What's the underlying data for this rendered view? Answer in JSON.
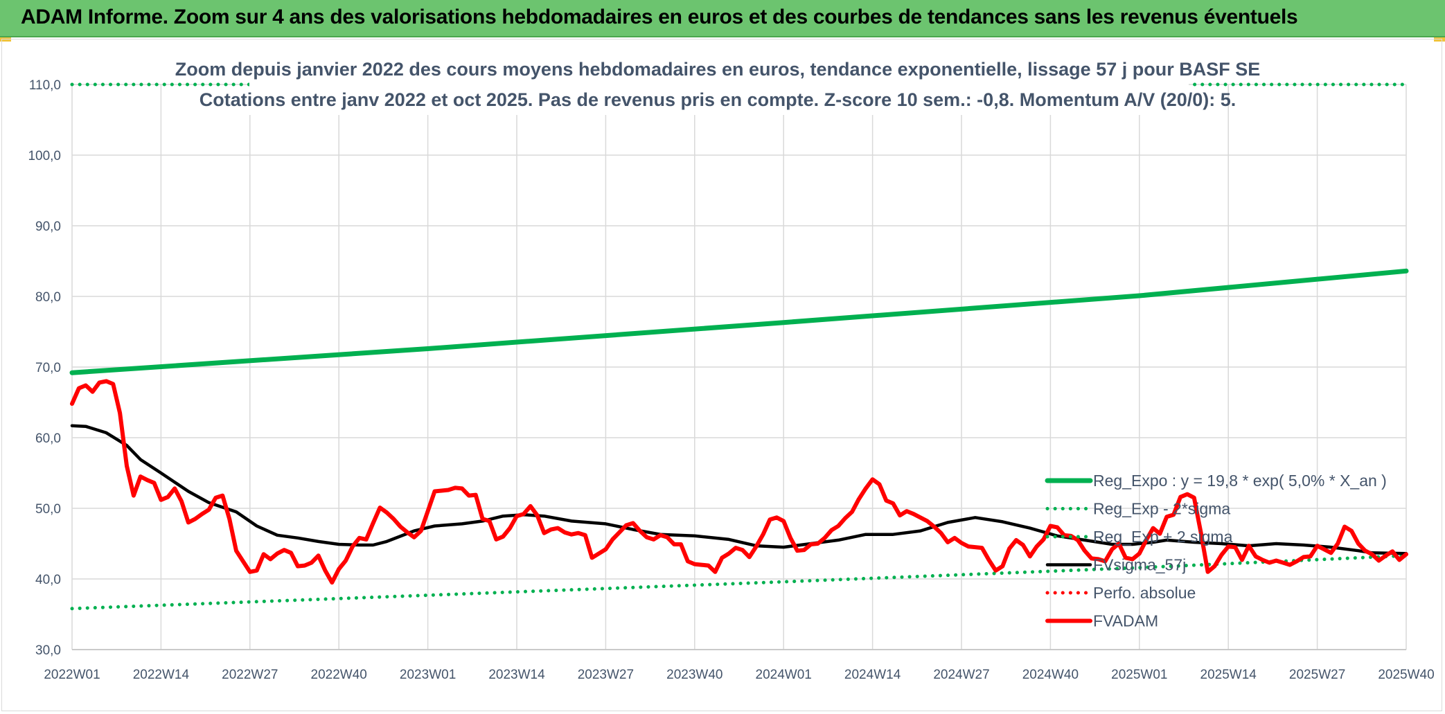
{
  "window": {
    "title": "ADAM Informe. Zoom sur 4 ans des valorisations hebdomadaires en euros et des courbes de tendances sans les revenus éventuels"
  },
  "colors": {
    "title_bar": "#6cc46f",
    "reg_expo": "#00b050",
    "sigma_lines": "#00b050",
    "fvsigma": "#000000",
    "perfo": "#ff0000",
    "fvadam": "#ff0000",
    "grid": "#d9d9d9",
    "text": "#44546a"
  },
  "chart_data": {
    "type": "line",
    "title": "Zoom depuis janvier 2022 des cours moyens hebdomadaires en euros, tendance exponentielle, lissage 57 j pour BASF SE",
    "subtitle": "Cotations entre janv 2022 et oct 2025. Pas de revenus pris en compte. Z-score 10 sem.: -0,8. Momentum A/V (20/0): 5.",
    "xlabel": "",
    "ylabel": "",
    "ylim": [
      30,
      110
    ],
    "yticks": [
      "30,0",
      "40,0",
      "50,0",
      "60,0",
      "70,0",
      "80,0",
      "90,0",
      "100,0",
      "110,0"
    ],
    "x_categories": [
      "2022W01",
      "2022W14",
      "2022W27",
      "2022W40",
      "2023W01",
      "2023W14",
      "2023W27",
      "2023W40",
      "2024W01",
      "2024W14",
      "2024W27",
      "2024W40",
      "2025W01",
      "2025W14",
      "2025W27",
      "2025W40"
    ],
    "x_range_weeks": [
      0,
      195
    ],
    "grid": true,
    "legend_position": "bottom-right",
    "legend": [
      "Reg_Expo : y = 19,8 * exp( 5,0% *  X_an )",
      "Reg_Exp - 2*sigma",
      "Reg_Exp + 2 sigma",
      "FVsigma_57j",
      "Perfo. absolue",
      "FVADAM"
    ],
    "series": [
      {
        "name": "Reg_Expo : y = 19,8 * exp( 5,0% *  X_an )",
        "style": "solid-thick",
        "color": "#00b050",
        "points": [
          [
            0,
            69.2
          ],
          [
            52,
            72.6
          ],
          [
            104,
            76.3
          ],
          [
            156,
            80.1
          ],
          [
            195,
            83.6
          ]
        ]
      },
      {
        "name": "Reg_Exp - 2*sigma",
        "style": "dotted",
        "color": "#00b050",
        "points": [
          [
            0,
            35.8
          ],
          [
            52,
            37.7
          ],
          [
            104,
            39.6
          ],
          [
            156,
            41.6
          ],
          [
            195,
            43.3
          ]
        ]
      },
      {
        "name": "Reg_Exp + 2 sigma",
        "style": "dotted",
        "color": "#00b050",
        "points": [
          [
            0,
            110.0
          ],
          [
            195,
            110.0
          ]
        ]
      },
      {
        "name": "FVsigma_57j",
        "style": "solid",
        "color": "#000000",
        "points": [
          [
            0,
            61.7
          ],
          [
            2,
            61.6
          ],
          [
            5,
            60.7
          ],
          [
            8,
            58.9
          ],
          [
            10,
            56.9
          ],
          [
            13,
            55.0
          ],
          [
            17,
            52.4
          ],
          [
            20,
            50.8
          ],
          [
            24,
            49.5
          ],
          [
            27,
            47.5
          ],
          [
            30,
            46.2
          ],
          [
            33,
            45.8
          ],
          [
            36,
            45.3
          ],
          [
            39,
            44.9
          ],
          [
            42,
            44.8
          ],
          [
            44,
            44.8
          ],
          [
            46,
            45.3
          ],
          [
            50,
            46.8
          ],
          [
            53,
            47.5
          ],
          [
            57,
            47.8
          ],
          [
            60,
            48.2
          ],
          [
            63,
            48.9
          ],
          [
            66,
            49.1
          ],
          [
            69,
            48.9
          ],
          [
            73,
            48.2
          ],
          [
            78,
            47.8
          ],
          [
            82,
            47.0
          ],
          [
            86,
            46.3
          ],
          [
            91,
            46.1
          ],
          [
            96,
            45.6
          ],
          [
            100,
            44.7
          ],
          [
            104,
            44.5
          ],
          [
            108,
            45.0
          ],
          [
            112,
            45.5
          ],
          [
            116,
            46.3
          ],
          [
            120,
            46.3
          ],
          [
            124,
            46.8
          ],
          [
            128,
            48.0
          ],
          [
            132,
            48.7
          ],
          [
            136,
            48.1
          ],
          [
            140,
            47.2
          ],
          [
            144,
            46.1
          ],
          [
            148,
            45.5
          ],
          [
            152,
            44.9
          ],
          [
            155,
            44.9
          ],
          [
            158,
            45.2
          ],
          [
            160,
            45.5
          ],
          [
            164,
            45.2
          ],
          [
            168,
            45.0
          ],
          [
            172,
            44.7
          ],
          [
            176,
            45.0
          ],
          [
            180,
            44.8
          ],
          [
            184,
            44.5
          ],
          [
            188,
            44.0
          ],
          [
            190,
            43.7
          ],
          [
            195,
            43.6
          ]
        ]
      },
      {
        "name": "Perfo. absolue",
        "style": "dotted",
        "color": "#ff0000",
        "points": []
      },
      {
        "name": "FVADAM",
        "style": "solid-thick",
        "color": "#ff0000",
        "points": [
          [
            0,
            64.8
          ],
          [
            1,
            67.0
          ],
          [
            2,
            67.4
          ],
          [
            3,
            66.5
          ],
          [
            4,
            67.8
          ],
          [
            5,
            68.0
          ],
          [
            6,
            67.6
          ],
          [
            7,
            63.5
          ],
          [
            8,
            56.0
          ],
          [
            9,
            51.8
          ],
          [
            10,
            54.5
          ],
          [
            11,
            54.0
          ],
          [
            12,
            53.6
          ],
          [
            13,
            51.2
          ],
          [
            14,
            51.6
          ],
          [
            15,
            52.8
          ],
          [
            16,
            51.0
          ],
          [
            17,
            48.0
          ],
          [
            18,
            48.5
          ],
          [
            19,
            49.2
          ],
          [
            20,
            49.8
          ],
          [
            21,
            51.5
          ],
          [
            22,
            51.8
          ],
          [
            23,
            48.5
          ],
          [
            24,
            44.0
          ],
          [
            25,
            42.5
          ],
          [
            26,
            41.0
          ],
          [
            27,
            41.2
          ],
          [
            28,
            43.5
          ],
          [
            29,
            42.8
          ],
          [
            30,
            43.6
          ],
          [
            31,
            44.1
          ],
          [
            32,
            43.7
          ],
          [
            33,
            41.8
          ],
          [
            34,
            41.9
          ],
          [
            35,
            42.3
          ],
          [
            36,
            43.3
          ],
          [
            37,
            41.2
          ],
          [
            38,
            39.5
          ],
          [
            39,
            41.4
          ],
          [
            40,
            42.6
          ],
          [
            41,
            44.6
          ],
          [
            42,
            45.8
          ],
          [
            43,
            45.6
          ],
          [
            44,
            47.9
          ],
          [
            45,
            50.1
          ],
          [
            46,
            49.4
          ],
          [
            47,
            48.5
          ],
          [
            48,
            47.4
          ],
          [
            49,
            46.6
          ],
          [
            50,
            45.9
          ],
          [
            51,
            46.8
          ],
          [
            52,
            49.6
          ],
          [
            53,
            52.4
          ],
          [
            54,
            52.5
          ],
          [
            55,
            52.6
          ],
          [
            56,
            52.9
          ],
          [
            57,
            52.8
          ],
          [
            58,
            51.8
          ],
          [
            59,
            51.9
          ],
          [
            60,
            48.5
          ],
          [
            61,
            48.2
          ],
          [
            62,
            45.6
          ],
          [
            63,
            46.0
          ],
          [
            64,
            47.2
          ],
          [
            65,
            48.9
          ],
          [
            66,
            49.2
          ],
          [
            67,
            50.3
          ],
          [
            68,
            49.0
          ],
          [
            69,
            46.5
          ],
          [
            70,
            47.0
          ],
          [
            71,
            47.2
          ],
          [
            72,
            46.6
          ],
          [
            73,
            46.3
          ],
          [
            74,
            46.5
          ],
          [
            75,
            46.2
          ],
          [
            76,
            43.0
          ],
          [
            77,
            43.6
          ],
          [
            78,
            44.2
          ],
          [
            79,
            45.6
          ],
          [
            80,
            46.6
          ],
          [
            81,
            47.6
          ],
          [
            82,
            47.9
          ],
          [
            83,
            46.8
          ],
          [
            84,
            45.9
          ],
          [
            85,
            45.6
          ],
          [
            86,
            46.2
          ],
          [
            87,
            45.9
          ],
          [
            88,
            44.9
          ],
          [
            89,
            44.9
          ],
          [
            90,
            42.5
          ],
          [
            91,
            42.1
          ],
          [
            92,
            42.0
          ],
          [
            93,
            41.9
          ],
          [
            94,
            41.0
          ],
          [
            95,
            43.0
          ],
          [
            96,
            43.6
          ],
          [
            97,
            44.4
          ],
          [
            98,
            44.1
          ],
          [
            99,
            43.1
          ],
          [
            100,
            44.6
          ],
          [
            101,
            46.3
          ],
          [
            102,
            48.4
          ],
          [
            103,
            48.7
          ],
          [
            104,
            48.2
          ],
          [
            105,
            45.8
          ],
          [
            106,
            44.0
          ],
          [
            107,
            44.1
          ],
          [
            108,
            44.9
          ],
          [
            109,
            45.0
          ],
          [
            110,
            45.8
          ],
          [
            111,
            46.9
          ],
          [
            112,
            47.5
          ],
          [
            113,
            48.6
          ],
          [
            114,
            49.5
          ],
          [
            115,
            51.3
          ],
          [
            116,
            52.8
          ],
          [
            117,
            54.1
          ],
          [
            118,
            53.4
          ],
          [
            119,
            51.1
          ],
          [
            120,
            50.7
          ],
          [
            121,
            49.0
          ],
          [
            122,
            49.6
          ],
          [
            123,
            49.2
          ],
          [
            124,
            48.7
          ],
          [
            125,
            48.2
          ],
          [
            126,
            47.4
          ],
          [
            127,
            46.5
          ],
          [
            128,
            45.2
          ],
          [
            129,
            45.8
          ],
          [
            130,
            45.1
          ],
          [
            131,
            44.6
          ],
          [
            132,
            44.5
          ],
          [
            133,
            44.4
          ],
          [
            134,
            42.7
          ],
          [
            135,
            41.2
          ],
          [
            136,
            41.8
          ],
          [
            137,
            44.3
          ],
          [
            138,
            45.5
          ],
          [
            139,
            44.8
          ],
          [
            140,
            43.2
          ],
          [
            141,
            44.6
          ],
          [
            142,
            45.6
          ],
          [
            143,
            47.5
          ],
          [
            144,
            47.3
          ],
          [
            145,
            46.2
          ],
          [
            146,
            46.1
          ],
          [
            147,
            45.5
          ],
          [
            148,
            44.0
          ],
          [
            149,
            42.9
          ],
          [
            150,
            42.8
          ],
          [
            151,
            42.5
          ],
          [
            152,
            44.2
          ],
          [
            153,
            45.0
          ],
          [
            154,
            43.0
          ],
          [
            155,
            42.8
          ],
          [
            156,
            43.6
          ],
          [
            157,
            45.5
          ],
          [
            158,
            47.2
          ],
          [
            159,
            46.4
          ],
          [
            160,
            48.8
          ],
          [
            161,
            49.1
          ],
          [
            162,
            51.6
          ],
          [
            163,
            52.0
          ],
          [
            164,
            51.5
          ],
          [
            165,
            46.5
          ],
          [
            166,
            41.0
          ],
          [
            167,
            41.8
          ],
          [
            168,
            43.4
          ],
          [
            169,
            44.6
          ],
          [
            170,
            44.5
          ],
          [
            171,
            42.7
          ],
          [
            172,
            44.7
          ],
          [
            173,
            43.2
          ],
          [
            174,
            42.7
          ],
          [
            175,
            42.3
          ],
          [
            176,
            42.6
          ],
          [
            177,
            42.3
          ],
          [
            178,
            42.0
          ],
          [
            179,
            42.5
          ],
          [
            180,
            43.1
          ],
          [
            181,
            43.2
          ],
          [
            182,
            44.7
          ],
          [
            183,
            44.2
          ],
          [
            184,
            43.7
          ],
          [
            185,
            45.0
          ],
          [
            186,
            47.4
          ],
          [
            187,
            46.8
          ],
          [
            188,
            45.0
          ],
          [
            189,
            44.0
          ],
          [
            190,
            43.5
          ],
          [
            191,
            42.6
          ],
          [
            192,
            43.3
          ],
          [
            193,
            43.9
          ],
          [
            194,
            42.7
          ],
          [
            195,
            43.5
          ]
        ]
      }
    ]
  }
}
